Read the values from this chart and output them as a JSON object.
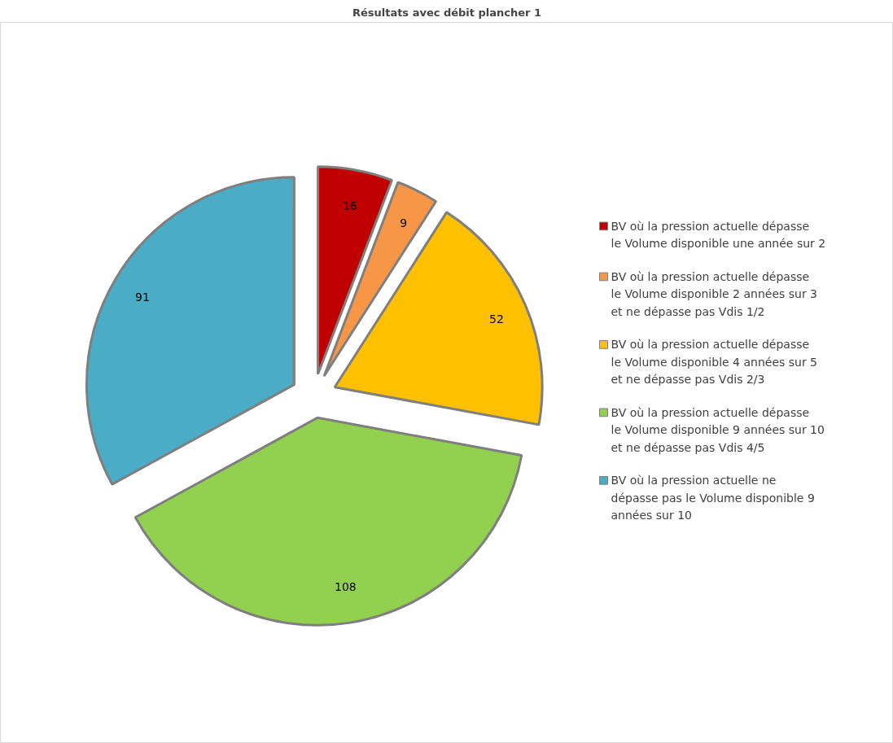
{
  "chart_data": {
    "type": "pie",
    "title": "Résultats avec débit plancher 1",
    "categories": [
      "BV où la pression actuelle dépasse le Volume disponible une année sur 2",
      "BV où la pression actuelle dépasse le Volume disponible 2 années sur 3 et ne dépasse pas Vdis 1/2",
      "BV où la pression actuelle dépasse le Volume disponible 4 années sur 5 et ne dépasse pas Vdis 2/3",
      "BV où la pression actuelle dépasse le Volume disponible 9 années sur 10 et ne dépasse pas Vdis 4/5",
      "BV où la pression actuelle ne dépasse pas le Volume disponible 9 années sur 10"
    ],
    "values": [
      16,
      9,
      52,
      108,
      91
    ],
    "colors": [
      "#c00000",
      "#f79646",
      "#ffc000",
      "#92d050",
      "#4bacc6"
    ],
    "data_labels": true,
    "legend": "right"
  }
}
